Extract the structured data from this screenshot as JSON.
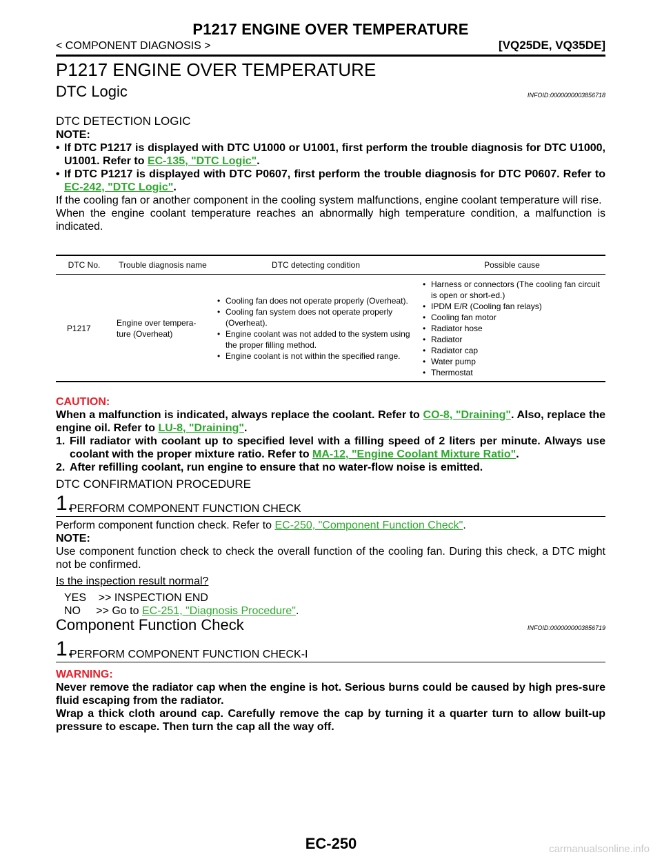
{
  "header": {
    "title": "P1217 ENGINE OVER TEMPERATURE",
    "breadcrumb": "< COMPONENT DIAGNOSIS >",
    "models": "[VQ25DE, VQ35DE]"
  },
  "page_title": "P1217 ENGINE OVER TEMPERATURE",
  "dtc_logic": {
    "heading": "DTC Logic",
    "infoid": "INFOID:0000000003856718",
    "detection_heading": "DTC DETECTION LOGIC",
    "note_label": "NOTE:",
    "note1_text": "If DTC P1217 is displayed with DTC U1000 or U1001, first perform the trouble diagnosis for DTC U1000, U1001. Refer to ",
    "note1_link": "EC-135, \"DTC Logic\"",
    "note2_text": "If DTC P1217 is displayed with DTC P0607, first perform the trouble diagnosis for DTC P0607. Refer to ",
    "note2_link": "EC-242, \"DTC Logic\"",
    "period": ".",
    "bullet": "•",
    "para1": "If the cooling fan or another component in the cooling system malfunctions, engine coolant temperature will rise.",
    "para2": "When the engine coolant temperature reaches an abnormally high temperature condition, a malfunction is indicated."
  },
  "table": {
    "headers": [
      "DTC No.",
      "Trouble diagnosis name",
      "DTC detecting condition",
      "Possible cause"
    ],
    "dtc_no": "P1217",
    "name_line1": "Engine over tempera-",
    "name_line2": "ture (Overheat)",
    "conditions": [
      "Cooling fan does not operate properly (Overheat).",
      "Cooling fan system does not operate properly (Overheat).",
      "Engine coolant was not added to the system using the proper filling method.",
      "Engine coolant is not within the specified range."
    ],
    "causes": [
      "Harness or connectors (The cooling fan circuit is open or short-ed.)",
      "IPDM E/R (Cooling fan relays)",
      "Cooling fan motor",
      "Radiator hose",
      "Radiator",
      "Radiator cap",
      "Water pump",
      "Thermostat"
    ]
  },
  "caution": {
    "label": "CAUTION:",
    "text1": "When a malfunction is indicated, always replace the coolant. Refer to ",
    "link1": "CO-8, \"Draining\"",
    "text2": ". Also, replace the engine oil. Refer to ",
    "link2": "LU-8, \"Draining\"",
    "period": ".",
    "item1_num": "1.",
    "item1_text": "Fill radiator with coolant up to specified level with a filling speed of 2 liters per minute. Always use coolant with the proper mixture ratio. Refer to ",
    "item1_link": "MA-12, \"Engine Coolant Mixture Ratio\"",
    "item2_num": "2.",
    "item2_text": "After refilling coolant, run engine to ensure that no water-flow noise is emitted."
  },
  "confirmation": {
    "heading": "DTC CONFIRMATION PROCEDURE",
    "step_num": "1.",
    "step_title": "PERFORM COMPONENT FUNCTION CHECK",
    "text": "Perform component function check. Refer to ",
    "link": "EC-250, \"Component Function Check\"",
    "period": ".",
    "note_label": "NOTE:",
    "note_text": "Use component function check to check the overall function of the cooling fan. During this check, a DTC might not be confirmed.",
    "question": "Is the inspection result normal?",
    "yes": "YES    >> INSPECTION END",
    "no_text": "NO     >> Go to ",
    "no_link": "EC-251, \"Diagnosis Procedure\""
  },
  "component_check": {
    "heading": "Component Function Check",
    "infoid": "INFOID:0000000003856719",
    "step_num": "1.",
    "step_title": "PERFORM COMPONENT FUNCTION CHECK-I",
    "warning_label": "WARNING:",
    "warning1": "Never remove the radiator cap when the engine is hot. Serious burns could be caused by high pres-sure fluid escaping from the radiator.",
    "warning2": "Wrap a thick cloth around cap. Carefully remove the cap by turning it a quarter turn to allow built-up pressure to escape. Then turn the cap all the way off."
  },
  "footer": {
    "page_number": "EC-250"
  },
  "watermark": "carmanualsonline.info"
}
